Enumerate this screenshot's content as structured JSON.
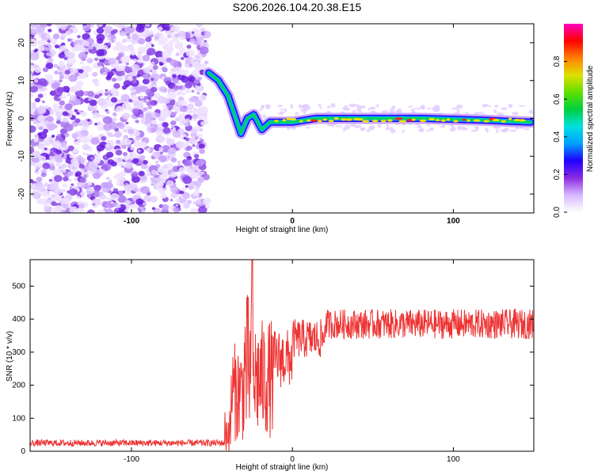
{
  "title": "S206.2026.104.20.38.E15",
  "chart_data": [
    {
      "type": "heatmap",
      "name": "spectrogram",
      "xlabel": "Height of straight line (km)",
      "ylabel": "Frequency (Hz)",
      "xlim": [
        -163,
        150
      ],
      "ylim": [
        -25,
        25
      ],
      "xticks": [
        -100,
        0,
        100
      ],
      "yticks": [
        -20,
        -10,
        0,
        10,
        20
      ],
      "noise_region_x": [
        -163,
        -53
      ],
      "ridge": [
        {
          "x": -52,
          "y": 12
        },
        {
          "x": -46,
          "y": 10
        },
        {
          "x": -40,
          "y": 6
        },
        {
          "x": -36,
          "y": 1
        },
        {
          "x": -32,
          "y": -4
        },
        {
          "x": -28,
          "y": 0
        },
        {
          "x": -24,
          "y": 1
        },
        {
          "x": -19,
          "y": -3
        },
        {
          "x": -14,
          "y": -1
        },
        {
          "x": 0,
          "y": -1
        },
        {
          "x": 15,
          "y": 0
        },
        {
          "x": 40,
          "y": 0
        },
        {
          "x": 80,
          "y": 0
        },
        {
          "x": 120,
          "y": -0.5
        },
        {
          "x": 148,
          "y": -1
        }
      ],
      "colorbar": {
        "label": "Normalized spectral amplitude",
        "range": [
          0,
          1
        ],
        "ticks": [
          0.0,
          0.2,
          0.4,
          0.6,
          0.8
        ],
        "tick_labels": [
          "0.0",
          "0.2",
          "0.4",
          "0.6",
          "0.8"
        ],
        "colors": [
          "#ffffff",
          "#d8b8ff",
          "#8a2be2",
          "#2000ff",
          "#00a0ff",
          "#00e0e0",
          "#00d040",
          "#60e000",
          "#e0e000",
          "#ff8000",
          "#ff0000",
          "#ff00c0"
        ]
      }
    },
    {
      "type": "line",
      "name": "snr",
      "xlabel": "Height of straight line (km)",
      "ylabel": "SNR (10 * v/v)",
      "xlim": [
        -163,
        150
      ],
      "ylim": [
        0,
        580
      ],
      "xticks": [
        -100,
        0,
        100
      ],
      "yticks": [
        0,
        100,
        200,
        300,
        400,
        500
      ],
      "color": "#ee3333",
      "segments": [
        {
          "x0": -163,
          "x1": -42,
          "mean": 25,
          "spread": 10
        },
        {
          "x0": -42,
          "x1": -38,
          "mean": 60,
          "spread": 70
        },
        {
          "x0": -38,
          "x1": -30,
          "mean": 180,
          "spread": 150
        },
        {
          "x0": -30,
          "x1": -25,
          "mean": 250,
          "spread": 230
        },
        {
          "x0": -25,
          "x1": -12,
          "mean": 220,
          "spread": 180
        },
        {
          "x0": -12,
          "x1": 0,
          "mean": 280,
          "spread": 90
        },
        {
          "x0": 0,
          "x1": 20,
          "mean": 340,
          "spread": 60
        },
        {
          "x0": 20,
          "x1": 150,
          "mean": 385,
          "spread": 45
        }
      ],
      "peak": {
        "x": -25,
        "y": 580
      }
    }
  ]
}
